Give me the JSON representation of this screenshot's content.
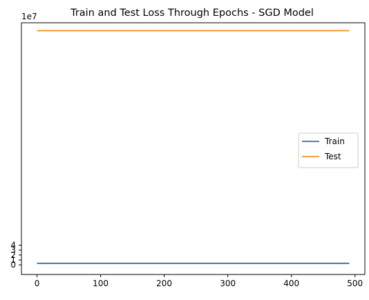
{
  "chart_data": {
    "type": "line",
    "title": "Train and Test Loss Through Epochs - SGD Model",
    "xlabel": "",
    "ylabel": "",
    "x_range": [
      0,
      491
    ],
    "xlim": [
      -24.5,
      515.5
    ],
    "ylim": [
      -1.95,
      49.15
    ],
    "y_scale_label": "1e7",
    "y_scale_factor": 10000000,
    "x_ticks": [
      0,
      100,
      200,
      300,
      400,
      500
    ],
    "y_ticks": [
      0,
      1,
      2,
      3,
      4
    ],
    "grid": false,
    "legend_position": "center-right",
    "series": [
      {
        "name": "Train",
        "color": "#446a94",
        "x": [
          0,
          491
        ],
        "values": [
          0.32,
          0.32
        ]
      },
      {
        "name": "Test",
        "color": "#f39323",
        "x": [
          0,
          491
        ],
        "values": [
          47.55,
          47.55
        ]
      }
    ]
  }
}
